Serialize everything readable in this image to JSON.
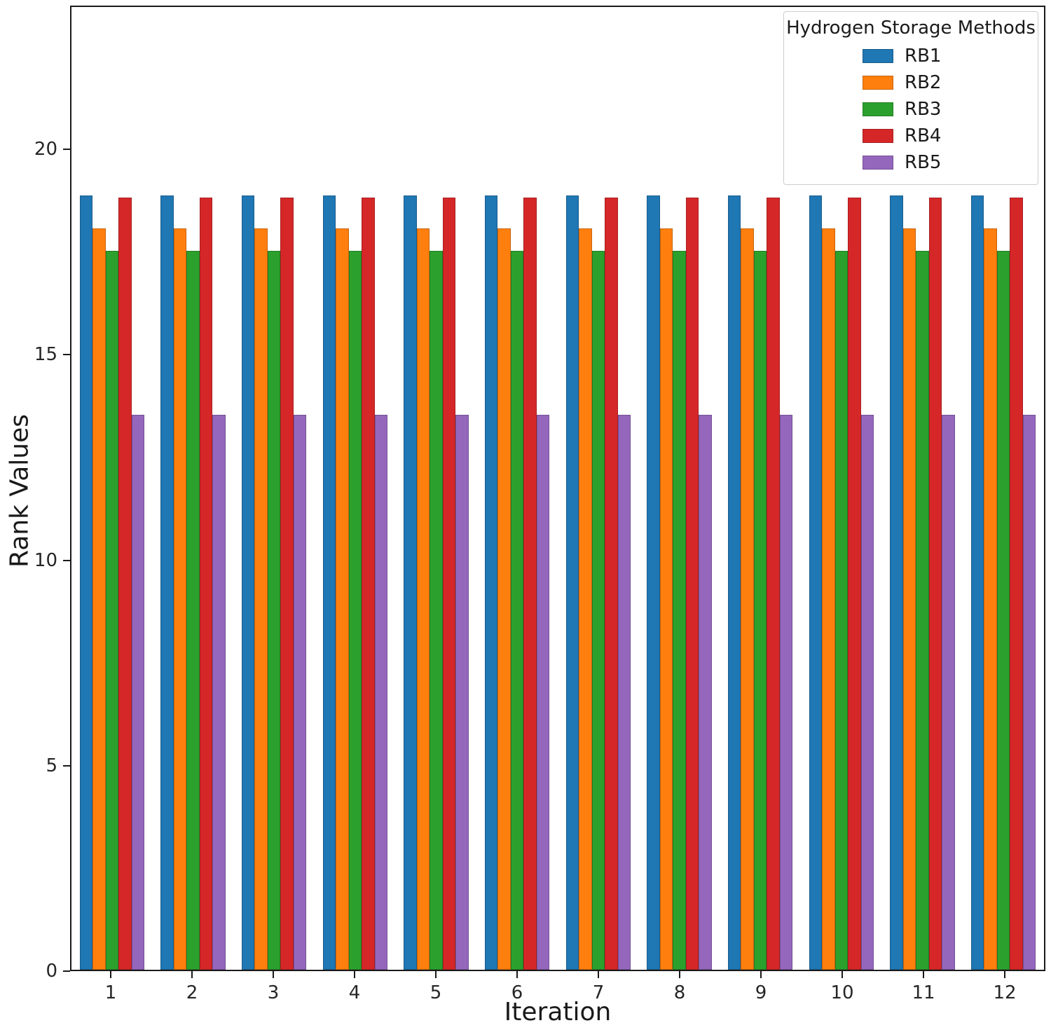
{
  "chart_data": {
    "type": "bar",
    "title": "",
    "xlabel": "Iteration",
    "ylabel": "Rank Values",
    "legend_title": "Hydrogen Storage Methods",
    "legend_position": "upper right",
    "grid": false,
    "categories": [
      "1",
      "2",
      "3",
      "4",
      "5",
      "6",
      "7",
      "8",
      "9",
      "10",
      "11",
      "12"
    ],
    "ylim": [
      0,
      23.5
    ],
    "yticks": [
      0,
      5,
      10,
      15,
      20
    ],
    "series": [
      {
        "name": "RB1",
        "color": "#1f77b4",
        "values": [
          18.9,
          18.9,
          18.9,
          18.9,
          18.9,
          18.9,
          18.9,
          18.9,
          18.9,
          18.9,
          18.9,
          18.9
        ]
      },
      {
        "name": "RB2",
        "color": "#ff7f0e",
        "values": [
          18.1,
          18.1,
          18.1,
          18.1,
          18.1,
          18.1,
          18.1,
          18.1,
          18.1,
          18.1,
          18.1,
          18.1
        ]
      },
      {
        "name": "RB3",
        "color": "#2ca02c",
        "values": [
          17.55,
          17.55,
          17.55,
          17.55,
          17.55,
          17.55,
          17.55,
          17.55,
          17.55,
          17.55,
          17.55,
          17.55
        ]
      },
      {
        "name": "RB4",
        "color": "#d62728",
        "values": [
          18.85,
          18.85,
          18.85,
          18.85,
          18.85,
          18.85,
          18.85,
          18.85,
          18.85,
          18.85,
          18.85,
          18.85
        ]
      },
      {
        "name": "RB5",
        "color": "#9467bd",
        "values": [
          13.55,
          13.55,
          13.55,
          13.55,
          13.55,
          13.55,
          13.55,
          13.55,
          13.55,
          13.55,
          13.55,
          13.55
        ]
      }
    ]
  }
}
